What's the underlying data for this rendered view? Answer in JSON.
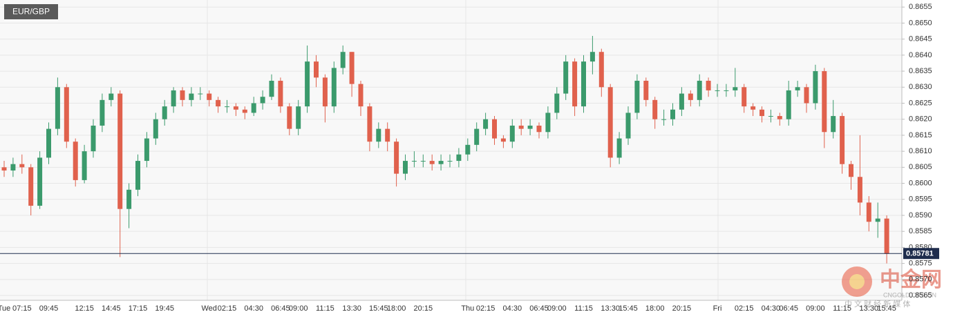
{
  "chart_data": {
    "type": "candlestick",
    "title": "EUR/GBP",
    "categories": [
      "Tue",
      null,
      "07:15",
      null,
      null,
      "09:45",
      null,
      null,
      null,
      "12:15",
      null,
      null,
      "14:45",
      null,
      null,
      "17:15",
      null,
      null,
      "19:45",
      null,
      null,
      null,
      null,
      "Wed",
      null,
      "02:15",
      null,
      null,
      "04:30",
      null,
      null,
      "06:45",
      null,
      "09:00",
      null,
      null,
      "11:15",
      null,
      null,
      "13:30",
      null,
      null,
      "15:45",
      null,
      "18:00",
      null,
      null,
      "20:15",
      null,
      null,
      null,
      null,
      "Thu",
      null,
      "02:15",
      null,
      null,
      "04:30",
      null,
      null,
      "06:45",
      null,
      "09:00",
      null,
      null,
      "11:15",
      null,
      null,
      "13:30",
      null,
      "15:45",
      null,
      null,
      "18:00",
      null,
      null,
      "20:15",
      null,
      null,
      null,
      "Fri",
      null,
      null,
      "02:15",
      null,
      null,
      "04:30",
      null,
      "06:45",
      null,
      null,
      "09:00",
      null,
      null,
      "11:15",
      null,
      null,
      "13:30",
      null,
      "15:45"
    ],
    "open": [
      0.8605,
      0.8604,
      0.8606,
      0.8605,
      0.8593,
      0.8608,
      0.8617,
      0.863,
      0.8613,
      0.8601,
      0.861,
      0.8618,
      0.8626,
      0.8628,
      0.8592,
      0.8598,
      0.8607,
      0.8614,
      0.862,
      0.8624,
      0.8629,
      0.8626,
      0.8628,
      0.8628,
      0.8626,
      0.8624,
      0.8624,
      0.8623,
      0.8622,
      0.8625,
      0.8627,
      0.8632,
      0.8624,
      0.8617,
      0.8624,
      0.8638,
      0.8633,
      0.8624,
      0.8636,
      0.8641,
      0.8631,
      0.8624,
      0.8613,
      0.8617,
      0.8613,
      0.8603,
      0.8607,
      0.8607,
      0.8607,
      0.8606,
      0.8607,
      0.8607,
      0.8609,
      0.8612,
      0.8617,
      0.862,
      0.8614,
      0.8613,
      0.8618,
      0.8617,
      0.8618,
      0.8616,
      0.8622,
      0.8628,
      0.8638,
      0.8624,
      0.8638,
      0.8641,
      0.863,
      0.8608,
      0.8614,
      0.8622,
      0.8632,
      0.8626,
      0.862,
      0.862,
      0.8623,
      0.8628,
      0.8626,
      0.8632,
      0.8629,
      0.8629,
      0.8629,
      0.863,
      0.8624,
      0.8623,
      0.8621,
      0.8621,
      0.862,
      0.8629,
      0.863,
      0.8625,
      0.8635,
      0.8616,
      0.8621,
      0.8606,
      0.8602,
      0.8594,
      0.8588,
      0.8589
    ],
    "high": [
      0.8607,
      0.8608,
      0.8609,
      0.8606,
      0.861,
      0.8619,
      0.8633,
      0.8631,
      0.8614,
      0.8612,
      0.862,
      0.8628,
      0.863,
      0.8629,
      0.86,
      0.8609,
      0.8616,
      0.8622,
      0.8626,
      0.863,
      0.863,
      0.863,
      0.863,
      0.8629,
      0.8627,
      0.8626,
      0.8625,
      0.8624,
      0.8627,
      0.8629,
      0.8634,
      0.8633,
      0.8625,
      0.8626,
      0.8643,
      0.864,
      0.8634,
      0.8638,
      0.8643,
      0.8641,
      0.8632,
      0.8625,
      0.8619,
      0.8619,
      0.8614,
      0.8609,
      0.861,
      0.8609,
      0.8609,
      0.8609,
      0.8609,
      0.8611,
      0.8614,
      0.8619,
      0.8622,
      0.8621,
      0.8615,
      0.862,
      0.862,
      0.862,
      0.8619,
      0.8624,
      0.863,
      0.864,
      0.8639,
      0.864,
      0.8646,
      0.8642,
      0.8631,
      0.8616,
      0.8624,
      0.8634,
      0.8633,
      0.8627,
      0.8623,
      0.8625,
      0.863,
      0.8629,
      0.8634,
      0.8633,
      0.8631,
      0.8631,
      0.8636,
      0.8631,
      0.8625,
      0.8624,
      0.8623,
      0.8622,
      0.8632,
      0.8632,
      0.8631,
      0.8637,
      0.8636,
      0.8626,
      0.8622,
      0.8607,
      0.8615,
      0.8596,
      0.8594,
      0.859
    ],
    "low": [
      0.8602,
      0.8602,
      0.8603,
      0.859,
      0.8592,
      0.8606,
      0.8615,
      0.8611,
      0.8599,
      0.86,
      0.8608,
      0.8616,
      0.8624,
      0.8577,
      0.8586,
      0.8596,
      0.8605,
      0.8612,
      0.8618,
      0.8622,
      0.8624,
      0.8624,
      0.8626,
      0.8624,
      0.8622,
      0.8622,
      0.8621,
      0.862,
      0.8621,
      0.8623,
      0.8626,
      0.8622,
      0.8615,
      0.8615,
      0.8622,
      0.863,
      0.8619,
      0.8622,
      0.8634,
      0.8627,
      0.8621,
      0.861,
      0.8611,
      0.861,
      0.8599,
      0.8601,
      0.8605,
      0.8605,
      0.8604,
      0.8604,
      0.8605,
      0.8605,
      0.8607,
      0.861,
      0.8615,
      0.8612,
      0.8611,
      0.8611,
      0.8615,
      0.8615,
      0.8614,
      0.8614,
      0.862,
      0.8626,
      0.8621,
      0.8622,
      0.8634,
      0.8627,
      0.8605,
      0.8606,
      0.8612,
      0.862,
      0.8624,
      0.8617,
      0.8618,
      0.8618,
      0.8621,
      0.8624,
      0.8624,
      0.8627,
      0.8627,
      0.8627,
      0.8627,
      0.8622,
      0.8621,
      0.8619,
      0.8619,
      0.8618,
      0.8618,
      0.8627,
      0.8622,
      0.8623,
      0.8611,
      0.8614,
      0.8603,
      0.8598,
      0.859,
      0.8585,
      0.8583,
      0.8575
    ],
    "close": [
      0.8604,
      0.8606,
      0.8605,
      0.8593,
      0.8608,
      0.8617,
      0.863,
      0.8613,
      0.8601,
      0.861,
      0.8618,
      0.8626,
      0.8628,
      0.8592,
      0.8598,
      0.8607,
      0.8614,
      0.862,
      0.8624,
      0.8629,
      0.8626,
      0.8628,
      0.8628,
      0.8626,
      0.8624,
      0.8624,
      0.8623,
      0.8622,
      0.8625,
      0.8627,
      0.8632,
      0.8624,
      0.8617,
      0.8624,
      0.8638,
      0.8633,
      0.8624,
      0.8636,
      0.8641,
      0.8631,
      0.8624,
      0.8613,
      0.8617,
      0.8613,
      0.8603,
      0.8607,
      0.8607,
      0.8607,
      0.8606,
      0.8607,
      0.8607,
      0.8609,
      0.8612,
      0.8617,
      0.862,
      0.8614,
      0.8613,
      0.8618,
      0.8617,
      0.8618,
      0.8616,
      0.8622,
      0.8628,
      0.8638,
      0.8624,
      0.8638,
      0.8641,
      0.863,
      0.8608,
      0.8614,
      0.8622,
      0.8632,
      0.8626,
      0.862,
      0.862,
      0.8623,
      0.8628,
      0.8626,
      0.8632,
      0.8629,
      0.8629,
      0.8629,
      0.863,
      0.8624,
      0.8623,
      0.8621,
      0.8621,
      0.862,
      0.8629,
      0.863,
      0.8625,
      0.8635,
      0.8616,
      0.8621,
      0.8606,
      0.8602,
      0.8594,
      0.8588,
      0.8589,
      0.8578
    ],
    "up_color": "#3b9a6c",
    "down_color": "#e0614d",
    "last": 0.85781,
    "last_color": "#1f2d4d",
    "ylim": [
      0.85635,
      0.86572
    ],
    "yticks": [
      0.8565,
      {
        "value": 0.857,
        "label": "0.8570"
      },
      0.8575,
      {
        "value": 0.858,
        "label": "0.8580"
      },
      0.8585,
      {
        "value": 0.859,
        "label": "0.8590"
      },
      0.8595,
      {
        "value": 0.86,
        "label": "0.8600"
      },
      0.8605,
      {
        "value": 0.861,
        "label": "0.8610"
      },
      0.8615,
      {
        "value": 0.862,
        "label": "0.8620"
      },
      0.8625,
      {
        "value": 0.863,
        "label": "0.8630"
      },
      0.8635,
      {
        "value": 0.864,
        "label": "0.8640"
      },
      0.8645,
      {
        "value": 0.865,
        "label": "0.8650"
      },
      0.8655
    ],
    "grid": true,
    "watermark": {
      "name": "中金网",
      "site": "CNGOLD.ORG.CN",
      "slogan": "中 文 财 经 新 媒 体"
    }
  }
}
